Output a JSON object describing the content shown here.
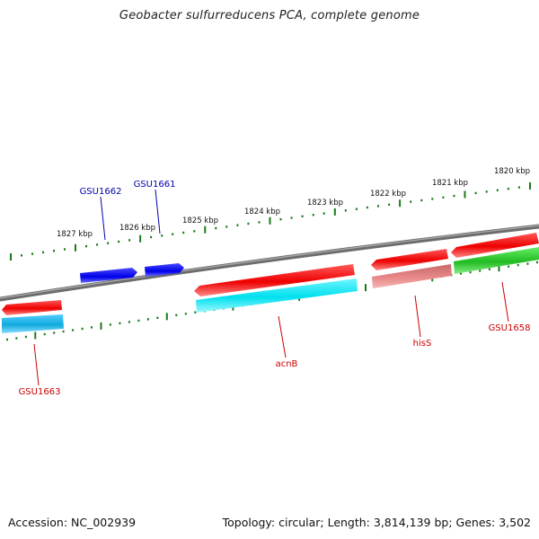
{
  "title": "Geobacter sulfurreducens PCA, complete genome",
  "footer": {
    "accession": "Accession: NC_002939",
    "summary": "Topology: circular; Length: 3,814,139 bp; Genes: 3,502"
  },
  "scale_labels": [
    "1827 kbp",
    "1826 kbp",
    "1825 kbp",
    "1824 kbp",
    "1823 kbp",
    "1822 kbp",
    "1821 kbp",
    "1820 kbp"
  ],
  "colors": {
    "backbone": "#808080",
    "tick": "#1a7a1a",
    "forward_gene": "#0000ee",
    "reverse_gene": "#ee0000",
    "cyan_feature": "#00e5ee",
    "salmon_feature": "#e88888",
    "green_feature": "#33cc33",
    "blue_label": "#0000aa",
    "red_label": "#cc0000"
  },
  "gene_labels": [
    {
      "id": "gsu1662",
      "text": "GSU1662",
      "color": "blue_label"
    },
    {
      "id": "gsu1661",
      "text": "GSU1661",
      "color": "blue_label"
    },
    {
      "id": "acnb",
      "text": "acnB",
      "color": "red_label"
    },
    {
      "id": "hiss",
      "text": "hisS",
      "color": "red_label"
    },
    {
      "id": "gsu1658",
      "text": "GSU1658",
      "color": "red_label"
    },
    {
      "id": "gsu1663",
      "text": "GSU1663",
      "color": "red_label"
    }
  ]
}
